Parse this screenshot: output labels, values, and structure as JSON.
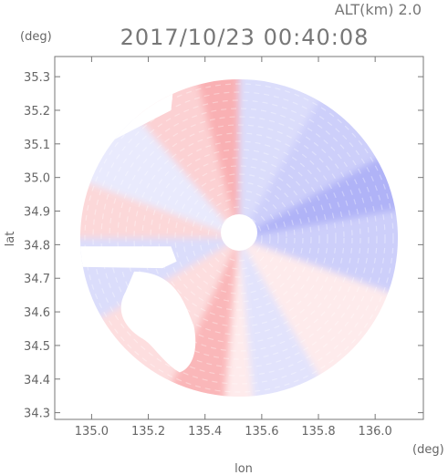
{
  "chart_data": {
    "type": "heatmap",
    "title": "2017/10/23 00:40:08",
    "subtitle": "ALT(km) 2.0",
    "xlabel": "lon",
    "ylabel": "lat",
    "x_unit": "(deg)",
    "y_unit": "(deg)",
    "xlim": [
      134.87,
      136.17
    ],
    "ylim": [
      34.28,
      35.36
    ],
    "x_ticks": [
      "135.0",
      "135.2",
      "135.4",
      "135.6",
      "135.8",
      "136.0"
    ],
    "y_ticks": [
      "34.3",
      "34.4",
      "34.5",
      "34.6",
      "34.7",
      "34.8",
      "34.9",
      "35.0",
      "35.1",
      "35.2",
      "35.3"
    ],
    "radar_center": {
      "lon": 135.52,
      "lat": 34.82
    },
    "radar_range_deg": 0.56,
    "colormap": {
      "negative": "#6f75f0",
      "neutral": "#ffffff",
      "positive": "#f57c80"
    },
    "field_description": "Doppler velocity sectors: blue (approaching) to red (receding)",
    "sectors": [
      {
        "from_deg": 0,
        "to_deg": 30,
        "value": -0.25
      },
      {
        "from_deg": 30,
        "to_deg": 60,
        "value": -0.35
      },
      {
        "from_deg": 60,
        "to_deg": 80,
        "value": -0.55
      },
      {
        "from_deg": 80,
        "to_deg": 110,
        "value": -0.35
      },
      {
        "from_deg": 110,
        "to_deg": 150,
        "value": 0.15
      },
      {
        "from_deg": 150,
        "to_deg": 175,
        "value": -0.2
      },
      {
        "from_deg": 175,
        "to_deg": 185,
        "value": 0.15
      },
      {
        "from_deg": 185,
        "to_deg": 205,
        "value": 0.55
      },
      {
        "from_deg": 205,
        "to_deg": 240,
        "value": 0.25
      },
      {
        "from_deg": 240,
        "to_deg": 270,
        "value": -0.25
      },
      {
        "from_deg": 270,
        "to_deg": 290,
        "value": 0.3
      },
      {
        "from_deg": 290,
        "to_deg": 320,
        "value": -0.15
      },
      {
        "from_deg": 320,
        "to_deg": 345,
        "value": 0.35
      },
      {
        "from_deg": 345,
        "to_deg": 360,
        "value": 0.6
      }
    ]
  }
}
